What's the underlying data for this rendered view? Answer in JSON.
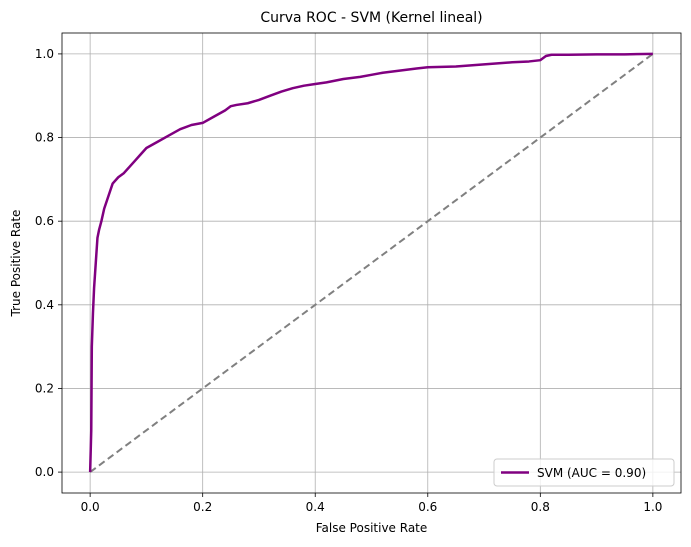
{
  "chart_data": {
    "type": "line",
    "title": "Curva ROC - SVM (Kernel lineal)",
    "xlabel": "False Positive Rate",
    "ylabel": "True Positive Rate",
    "xlim": [
      -0.05,
      1.05
    ],
    "ylim": [
      -0.05,
      1.05
    ],
    "xticks": [
      0.0,
      0.2,
      0.4,
      0.6,
      0.8,
      1.0
    ],
    "yticks": [
      0.0,
      0.2,
      0.4,
      0.6,
      0.8,
      1.0
    ],
    "xtick_labels": [
      "0.0",
      "0.2",
      "0.4",
      "0.6",
      "0.8",
      "1.0"
    ],
    "ytick_labels": [
      "0.0",
      "0.2",
      "0.4",
      "0.6",
      "0.8",
      "1.0"
    ],
    "grid": true,
    "legend_position": "lower-right",
    "series": [
      {
        "name": "SVM (AUC = 0.90)",
        "color": "#800080",
        "style": "solid",
        "x": [
          0.0,
          0.002,
          0.003,
          0.005,
          0.007,
          0.01,
          0.013,
          0.016,
          0.02,
          0.025,
          0.03,
          0.035,
          0.04,
          0.05,
          0.06,
          0.07,
          0.08,
          0.09,
          0.1,
          0.12,
          0.14,
          0.16,
          0.18,
          0.2,
          0.22,
          0.24,
          0.25,
          0.26,
          0.28,
          0.3,
          0.32,
          0.34,
          0.36,
          0.38,
          0.4,
          0.42,
          0.45,
          0.48,
          0.5,
          0.52,
          0.55,
          0.58,
          0.6,
          0.65,
          0.7,
          0.75,
          0.78,
          0.8,
          0.81,
          0.82,
          0.85,
          0.9,
          0.95,
          1.0
        ],
        "y": [
          0.0,
          0.1,
          0.3,
          0.38,
          0.44,
          0.5,
          0.56,
          0.58,
          0.6,
          0.63,
          0.65,
          0.67,
          0.69,
          0.705,
          0.715,
          0.73,
          0.745,
          0.76,
          0.775,
          0.79,
          0.805,
          0.82,
          0.83,
          0.835,
          0.85,
          0.865,
          0.875,
          0.878,
          0.882,
          0.89,
          0.9,
          0.91,
          0.918,
          0.924,
          0.928,
          0.932,
          0.94,
          0.945,
          0.95,
          0.955,
          0.96,
          0.965,
          0.968,
          0.97,
          0.975,
          0.98,
          0.982,
          0.985,
          0.995,
          0.998,
          0.998,
          0.999,
          0.999,
          1.0
        ]
      },
      {
        "name": "",
        "color": "#808080",
        "style": "dashed",
        "x": [
          0.0,
          1.0
        ],
        "y": [
          0.0,
          1.0
        ]
      }
    ]
  }
}
